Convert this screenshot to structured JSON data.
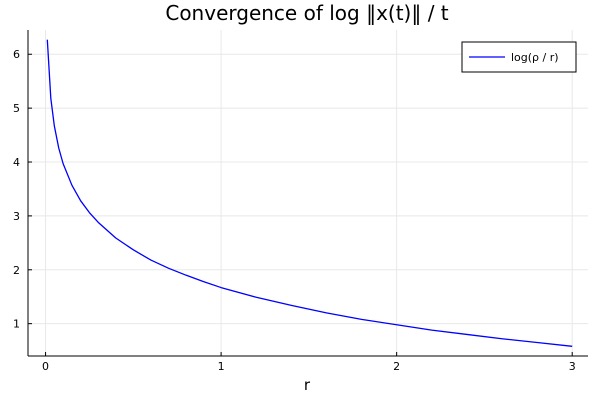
{
  "chart_data": {
    "type": "line",
    "title": "Convergence of log ‖x(t)‖ / t",
    "xlabel": "r",
    "ylabel": "",
    "xlim": [
      -0.1,
      3.09
    ],
    "ylim": [
      0.4,
      6.45
    ],
    "xticks": [
      0,
      1,
      2,
      3
    ],
    "yticks": [
      1,
      2,
      3,
      4,
      5,
      6
    ],
    "xtick_labels": [
      "0",
      "1",
      "2",
      "3"
    ],
    "ytick_labels": [
      "1",
      "2",
      "3",
      "4",
      "5",
      "6"
    ],
    "grid": true,
    "legend_position": "top-right",
    "series": [
      {
        "name": "log(ρ / r)",
        "color": "#0000ff",
        "x": [
          0.01,
          0.03,
          0.05,
          0.075,
          0.1,
          0.15,
          0.2,
          0.25,
          0.3,
          0.4,
          0.5,
          0.6,
          0.7,
          0.8,
          0.9,
          1.0,
          1.2,
          1.4,
          1.6,
          1.8,
          2.0,
          2.2,
          2.4,
          2.6,
          2.8,
          3.0
        ],
        "y": [
          6.27,
          5.18,
          4.67,
          4.26,
          3.97,
          3.57,
          3.28,
          3.06,
          2.88,
          2.59,
          2.37,
          2.18,
          2.03,
          1.9,
          1.78,
          1.67,
          1.49,
          1.34,
          1.2,
          1.08,
          0.98,
          0.88,
          0.8,
          0.72,
          0.65,
          0.58
        ]
      }
    ]
  }
}
